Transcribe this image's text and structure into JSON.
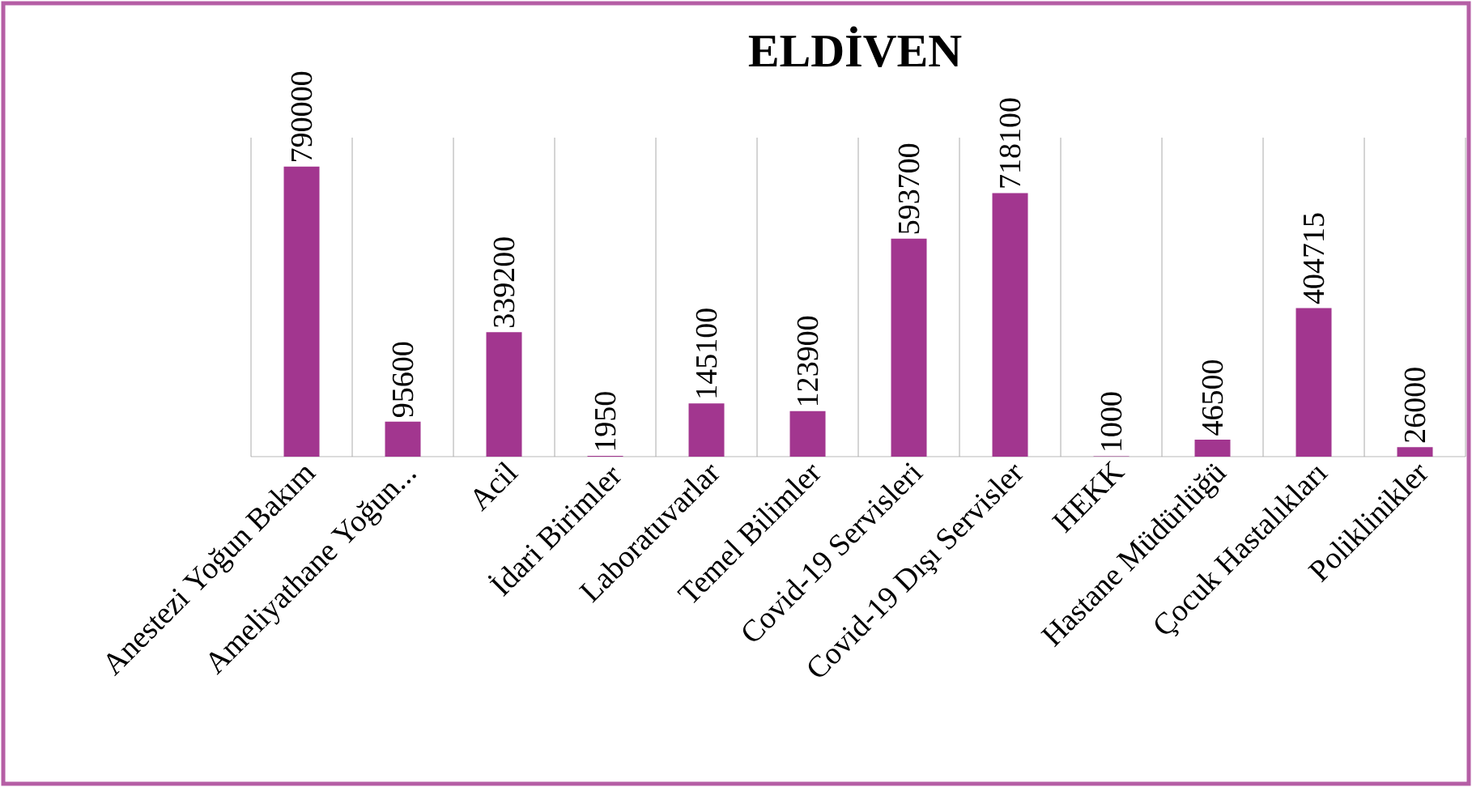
{
  "chart_data": {
    "type": "bar",
    "title": "ELDİVEN",
    "categories": [
      "Anestezi Yoğun Bakım",
      "Ameliyathane Yoğun...",
      "Acil",
      "İdari Birimler",
      "Laboratuvarlar",
      "Temel Bilimler",
      "Covid-19 Servisleri",
      "Covid-19 Dışı Servisler",
      "HEKK",
      "Hastane Müdürlüğü",
      "Çocuk Hastalıkları",
      "Poliklinikler"
    ],
    "values": [
      790000,
      95600,
      339200,
      1950,
      145100,
      123900,
      593700,
      718100,
      1000,
      46500,
      404715,
      26000
    ],
    "color": "#a2368f",
    "data_labels": true,
    "grid": "x"
  }
}
